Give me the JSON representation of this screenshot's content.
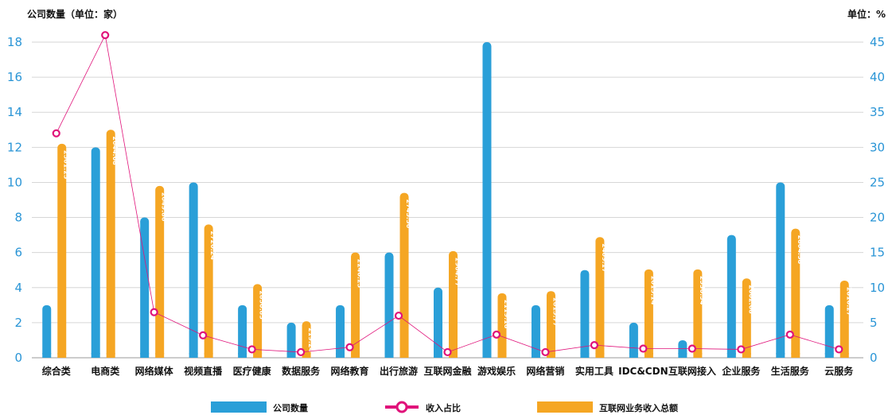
{
  "chart_data": {
    "type": "bar",
    "left_axis_title": "公司数量（单位：家）",
    "right_axis_title": "单位：%",
    "categories": [
      "综合类",
      "电商类",
      "网络媒体",
      "视频直播",
      "医疗健康",
      "数据服务",
      "网络教育",
      "出行旅游",
      "互联网金融",
      "游戏娱乐",
      "网络营销",
      "实用工具",
      "IDC&CDN",
      "互联网接入",
      "企业服务",
      "生活服务",
      "云服务"
    ],
    "left_axis": {
      "min": 0,
      "max": 18,
      "ticks": [
        0,
        2,
        4,
        6,
        8,
        10,
        12,
        14,
        16,
        18
      ]
    },
    "right_axis": {
      "min": 0,
      "max": 45,
      "ticks": [
        0,
        5,
        10,
        15,
        20,
        25,
        30,
        35,
        40,
        45
      ]
    },
    "series": [
      {
        "name": "公司数量",
        "type": "bar",
        "axis": "left",
        "color": "#2a9fd8",
        "values": [
          3,
          12,
          8,
          10,
          3,
          2,
          3,
          6,
          4,
          18,
          3,
          5,
          2,
          1,
          7,
          10,
          3
        ]
      },
      {
        "name": "收入占比",
        "type": "line",
        "axis": "right",
        "color": "#e0137a",
        "values": [
          32,
          46,
          6.5,
          3.2,
          1.2,
          0.8,
          1.5,
          6,
          0.8,
          3.3,
          0.8,
          1.8,
          1.3,
          1.3,
          1.2,
          3.3,
          1.2
        ]
      },
      {
        "name": "互联网业务收入总额",
        "type": "bar",
        "axis": "right",
        "color": "#f5a623",
        "values": [
          30.5,
          32.5,
          24.5,
          19,
          10.5,
          5.2,
          15,
          23.5,
          15.2,
          9.2,
          9.5,
          17.2,
          12.6,
          12.6,
          11.3,
          18.4,
          11
        ],
        "labels": [
          "2561.25",
          "2644.08",
          "2049.86",
          "2720.24",
          "2850.85",
          "219.24",
          "2240.25",
          "2745.56",
          "2904.77",
          "2119.18",
          "2815.77",
          "2409.17",
          "2015.14",
          "2530.54",
          "2002.68",
          "2804.58",
          "2816.27"
        ]
      }
    ],
    "legend": {
      "placement": "bottom"
    },
    "grid": true
  }
}
